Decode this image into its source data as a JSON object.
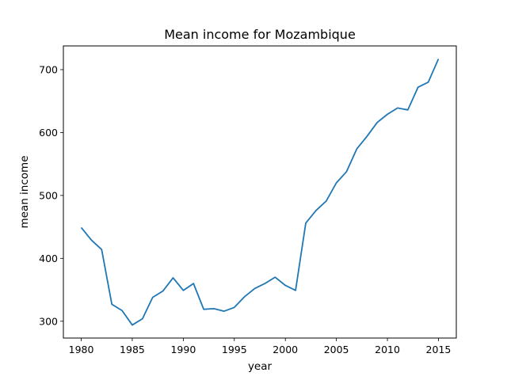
{
  "chart_data": {
    "type": "line",
    "title": "Mean income for Mozambique",
    "xlabel": "year",
    "ylabel": "mean income",
    "xlim": [
      1978.25,
      1976.75
    ],
    "ylim": [
      273.3,
      737.7
    ],
    "grid": false,
    "line_color": "#1f77b4",
    "x_ticks": [
      1980,
      1985,
      1990,
      1995,
      2000,
      2005,
      2010,
      2015
    ],
    "y_ticks": [
      300,
      400,
      500,
      600,
      700
    ],
    "x": [
      1980,
      1981,
      1982,
      1983,
      1984,
      1985,
      1986,
      1987,
      1988,
      1989,
      1990,
      1991,
      1992,
      1993,
      1994,
      1995,
      1996,
      1997,
      1998,
      1999,
      2000,
      2001,
      2002,
      2003,
      2004,
      2005,
      2006,
      2007,
      2008,
      2009,
      2010,
      2011,
      2012,
      2013,
      2014,
      2015
    ],
    "y": [
      449,
      429,
      414,
      327,
      317,
      294,
      304,
      338,
      348,
      369,
      349,
      360,
      319,
      320,
      316,
      322,
      339,
      352,
      360,
      370,
      357,
      349,
      456,
      476,
      491,
      520,
      538,
      574,
      594,
      616,
      629,
      639,
      636,
      672,
      680,
      717
    ]
  }
}
